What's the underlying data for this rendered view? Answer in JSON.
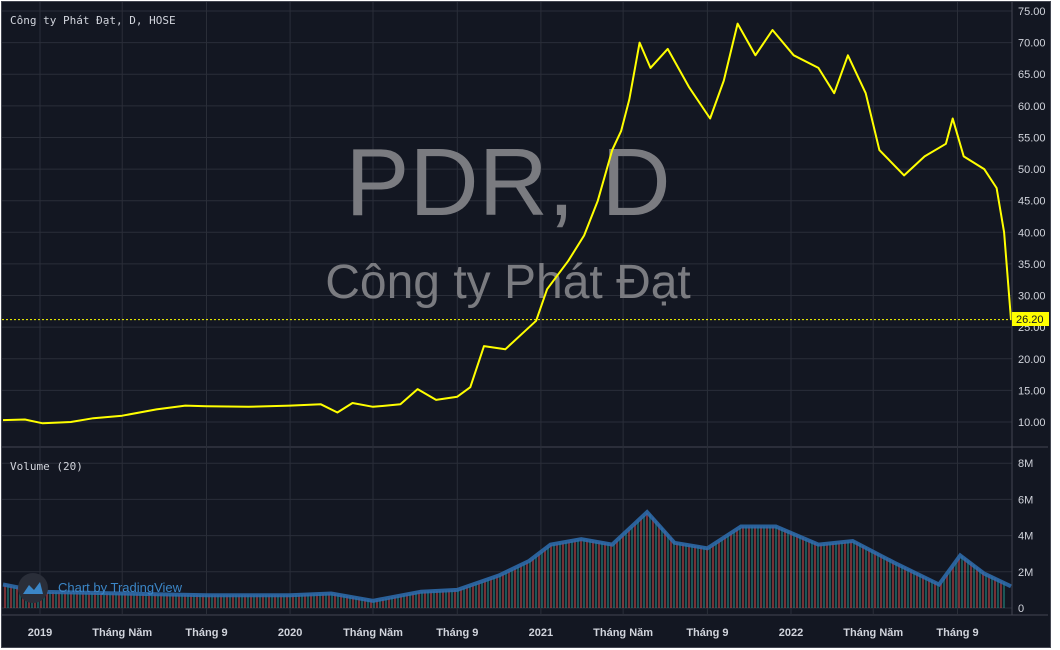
{
  "header": {
    "legend": "Công ty Phát Đạt, D, HOSE",
    "volume_legend": "Volume (20)"
  },
  "watermark": {
    "symbol": "PDR, D",
    "company": "Công ty Phát Đạt"
  },
  "branding": {
    "label": "Chart by TradingView",
    "icon": "tradingview-logo-icon"
  },
  "colors": {
    "background": "#131722",
    "price_line": "#ffff00",
    "volume_ma": "#2962ff",
    "volume_up": "#26a69a",
    "volume_down": "#ef5350",
    "grid": "#2a2e39"
  },
  "chart_data": [
    {
      "type": "line",
      "title": "PDR, D",
      "ylim": [
        7.5,
        76
      ],
      "yticks": [
        "75.00",
        "70.00",
        "65.00",
        "60.00",
        "55.00",
        "50.00",
        "45.00",
        "40.00",
        "35.00",
        "30.00",
        "25.00",
        "20.00",
        "15.00",
        "10.00"
      ],
      "last_price": "26.20",
      "xticks": [
        {
          "label": "2019",
          "date": "2019-01-01"
        },
        {
          "label": "Tháng Năm",
          "date": "2019-05-01"
        },
        {
          "label": "Tháng 9",
          "date": "2019-09-01"
        },
        {
          "label": "2020",
          "date": "2020-01-01"
        },
        {
          "label": "Tháng Năm",
          "date": "2020-05-01"
        },
        {
          "label": "Tháng 9",
          "date": "2020-09-01"
        },
        {
          "label": "2021",
          "date": "2021-01-01"
        },
        {
          "label": "Tháng Năm",
          "date": "2021-05-01"
        },
        {
          "label": "Tháng 9",
          "date": "2021-09-01"
        },
        {
          "label": "2022",
          "date": "2022-01-01"
        },
        {
          "label": "Tháng Năm",
          "date": "2022-05-01"
        },
        {
          "label": "Tháng 9",
          "date": "2022-09-01"
        }
      ],
      "series": [
        {
          "points": [
            [
              "2018-11-08",
              10.3
            ],
            [
              "2018-12-10",
              10.4
            ],
            [
              "2019-01-05",
              9.8
            ],
            [
              "2019-02-15",
              10.0
            ],
            [
              "2019-03-20",
              10.6
            ],
            [
              "2019-05-01",
              11.0
            ],
            [
              "2019-06-20",
              12.0
            ],
            [
              "2019-08-01",
              12.6
            ],
            [
              "2019-09-01",
              12.5
            ],
            [
              "2019-11-01",
              12.4
            ],
            [
              "2020-01-01",
              12.6
            ],
            [
              "2020-02-15",
              12.8
            ],
            [
              "2020-03-10",
              11.5
            ],
            [
              "2020-04-01",
              13.0
            ],
            [
              "2020-05-01",
              12.4
            ],
            [
              "2020-06-10",
              12.8
            ],
            [
              "2020-07-05",
              15.2
            ],
            [
              "2020-08-01",
              13.5
            ],
            [
              "2020-09-01",
              14.0
            ],
            [
              "2020-09-20",
              15.5
            ],
            [
              "2020-10-10",
              22.0
            ],
            [
              "2020-11-10",
              21.5
            ],
            [
              "2020-12-10",
              24.5
            ],
            [
              "2020-12-25",
              26.0
            ],
            [
              "2021-01-10",
              31.0
            ],
            [
              "2021-02-10",
              35.5
            ],
            [
              "2021-03-05",
              39.5
            ],
            [
              "2021-03-25",
              45.0
            ],
            [
              "2021-04-15",
              53.0
            ],
            [
              "2021-04-28",
              56.0
            ],
            [
              "2021-05-10",
              61.0
            ],
            [
              "2021-05-25",
              70.0
            ],
            [
              "2021-06-10",
              66.0
            ],
            [
              "2021-07-05",
              69.0
            ],
            [
              "2021-08-05",
              63.0
            ],
            [
              "2021-09-05",
              58.0
            ],
            [
              "2021-09-25",
              64.0
            ],
            [
              "2021-10-15",
              73.0
            ],
            [
              "2021-11-10",
              68.0
            ],
            [
              "2021-12-05",
              72.0
            ],
            [
              "2022-01-05",
              68.0
            ],
            [
              "2022-02-10",
              66.0
            ],
            [
              "2022-03-05",
              62.0
            ],
            [
              "2022-03-25",
              68.0
            ],
            [
              "2022-04-20",
              62.0
            ],
            [
              "2022-05-10",
              53.0
            ],
            [
              "2022-06-15",
              49.0
            ],
            [
              "2022-07-15",
              52.0
            ],
            [
              "2022-08-15",
              54.0
            ],
            [
              "2022-08-25",
              58.0
            ],
            [
              "2022-09-10",
              52.0
            ],
            [
              "2022-10-10",
              50.0
            ],
            [
              "2022-10-28",
              47.0
            ],
            [
              "2022-11-08",
              40.0
            ],
            [
              "2022-11-18",
              26.2
            ]
          ]
        }
      ]
    },
    {
      "type": "bar",
      "title": "Volume (20)",
      "ylim": [
        0,
        8.5
      ],
      "yticks": [
        "8M",
        "6M",
        "4M",
        "2M",
        "0"
      ],
      "series": [
        {
          "name": "Volume (20)",
          "unit": "M",
          "points": [
            [
              "2018-11-08",
              1.3
            ],
            [
              "2019-01-01",
              0.9
            ],
            [
              "2019-05-01",
              0.8
            ],
            [
              "2019-09-01",
              0.7
            ],
            [
              "2020-01-01",
              0.7
            ],
            [
              "2020-03-01",
              0.8
            ],
            [
              "2020-05-01",
              0.4
            ],
            [
              "2020-07-10",
              0.9
            ],
            [
              "2020-09-01",
              1.0
            ],
            [
              "2020-11-01",
              1.8
            ],
            [
              "2020-12-15",
              2.6
            ],
            [
              "2021-01-15",
              3.5
            ],
            [
              "2021-03-01",
              3.8
            ],
            [
              "2021-04-15",
              3.5
            ],
            [
              "2021-06-05",
              5.3
            ],
            [
              "2021-07-15",
              3.6
            ],
            [
              "2021-09-01",
              3.3
            ],
            [
              "2021-10-20",
              4.5
            ],
            [
              "2021-12-10",
              4.5
            ],
            [
              "2022-02-10",
              3.5
            ],
            [
              "2022-04-01",
              3.7
            ],
            [
              "2022-06-01",
              2.5
            ],
            [
              "2022-08-05",
              1.3
            ],
            [
              "2022-09-05",
              2.9
            ],
            [
              "2022-10-10",
              1.9
            ],
            [
              "2022-11-18",
              1.2
            ]
          ]
        }
      ]
    }
  ]
}
